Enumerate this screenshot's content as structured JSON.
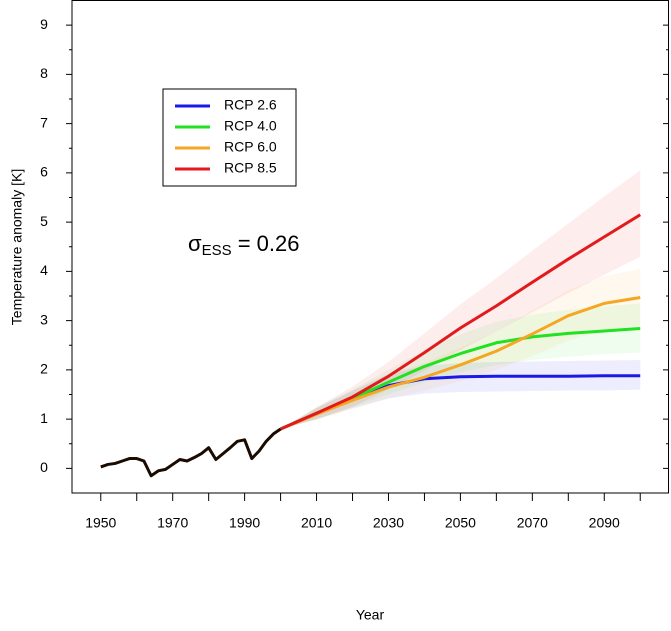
{
  "chart_data": {
    "type": "line",
    "xlabel": "Year",
    "ylabel": "Temperature anomaly [K]",
    "annotation": {
      "symbol": "σ",
      "subscript": "ESS",
      "text": " = 0.26"
    },
    "xlim": [
      1942,
      2108
    ],
    "ylim": [
      -0.5,
      9.5
    ],
    "xticks": [
      1950,
      1970,
      1990,
      2010,
      2030,
      2050,
      2070,
      2090
    ],
    "yticks": [
      0,
      1,
      2,
      3,
      4,
      5,
      6,
      7,
      8,
      9
    ],
    "legend": "upper left",
    "history": {
      "color": "#1a0a00",
      "x": [
        1950,
        1952,
        1954,
        1956,
        1958,
        1960,
        1962,
        1964,
        1966,
        1968,
        1970,
        1972,
        1974,
        1976,
        1978,
        1980,
        1982,
        1984,
        1986,
        1988,
        1990,
        1992,
        1994,
        1996,
        1998,
        2000
      ],
      "values": [
        0.03,
        0.08,
        0.1,
        0.15,
        0.2,
        0.2,
        0.15,
        -0.15,
        -0.05,
        -0.02,
        0.08,
        0.18,
        0.15,
        0.22,
        0.3,
        0.42,
        0.18,
        0.3,
        0.42,
        0.55,
        0.58,
        0.2,
        0.35,
        0.55,
        0.7,
        0.8
      ]
    },
    "x": [
      2000,
      2010,
      2020,
      2030,
      2040,
      2050,
      2060,
      2070,
      2080,
      2090,
      2100
    ],
    "series": [
      {
        "name": "RCP 2.6",
        "color": "#1a1ae6",
        "values": [
          0.8,
          1.12,
          1.4,
          1.68,
          1.82,
          1.86,
          1.87,
          1.87,
          1.87,
          1.88,
          1.88
        ],
        "lower": [
          0.8,
          1.0,
          1.22,
          1.42,
          1.52,
          1.55,
          1.56,
          1.57,
          1.58,
          1.58,
          1.6
        ],
        "upper": [
          0.8,
          1.22,
          1.58,
          1.92,
          2.08,
          2.14,
          2.16,
          2.17,
          2.18,
          2.19,
          2.2
        ]
      },
      {
        "name": "RCP 4.0",
        "color": "#22e022",
        "values": [
          0.8,
          1.12,
          1.42,
          1.75,
          2.07,
          2.33,
          2.55,
          2.67,
          2.74,
          2.79,
          2.84
        ],
        "lower": [
          0.8,
          1.0,
          1.25,
          1.5,
          1.75,
          1.95,
          2.1,
          2.2,
          2.27,
          2.32,
          2.35
        ],
        "upper": [
          0.8,
          1.24,
          1.6,
          2.0,
          2.4,
          2.72,
          2.98,
          3.12,
          3.22,
          3.29,
          3.35
        ]
      },
      {
        "name": "RCP 6.0",
        "color": "#f5a623",
        "values": [
          0.8,
          1.1,
          1.38,
          1.65,
          1.85,
          2.1,
          2.38,
          2.73,
          3.1,
          3.35,
          3.47
        ],
        "lower": [
          0.8,
          0.98,
          1.2,
          1.42,
          1.58,
          1.77,
          2.0,
          2.28,
          2.6,
          2.8,
          2.9
        ],
        "upper": [
          0.8,
          1.22,
          1.56,
          1.9,
          2.14,
          2.45,
          2.78,
          3.2,
          3.62,
          3.9,
          4.05
        ]
      },
      {
        "name": "RCP 8.5",
        "color": "#e31a1c",
        "values": [
          0.8,
          1.12,
          1.45,
          1.87,
          2.35,
          2.85,
          3.3,
          3.78,
          4.25,
          4.7,
          5.15
        ],
        "lower": [
          0.8,
          1.0,
          1.25,
          1.6,
          1.98,
          2.4,
          2.78,
          3.17,
          3.56,
          3.93,
          4.3
        ],
        "upper": [
          0.8,
          1.24,
          1.66,
          2.16,
          2.74,
          3.33,
          3.86,
          4.42,
          4.97,
          5.52,
          6.05
        ]
      }
    ]
  }
}
